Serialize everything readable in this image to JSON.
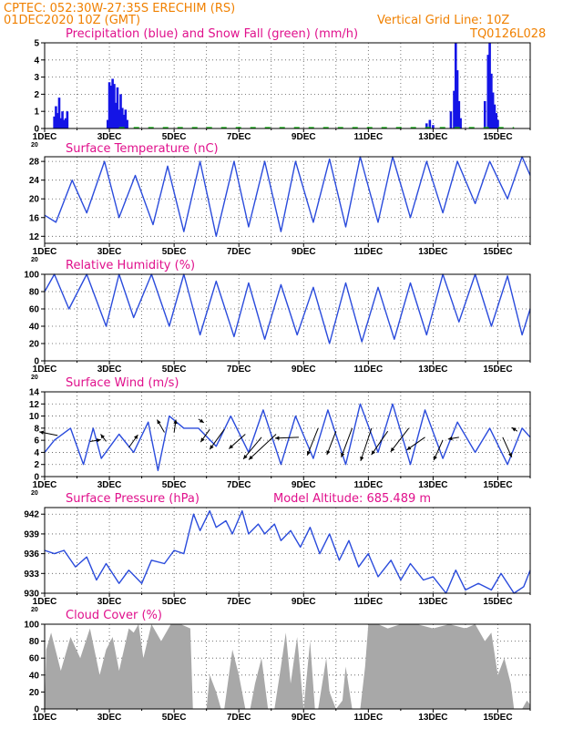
{
  "header": {
    "line1": "CPTEC:   052:30W-27:35S   ERECHIM (RS)",
    "line2": "01DEC2020  10Z (GMT)",
    "grid_note": "Vertical Grid Line: 10Z",
    "run_code": "TQ0126L028"
  },
  "x_axis": {
    "ticks": [
      "1DEC",
      "3DEC",
      "5DEC",
      "7DEC",
      "9DEC",
      "11DEC",
      "13DEC",
      "15DEC"
    ],
    "year_fragment": "20"
  },
  "colors": {
    "precip": "#1414e6",
    "snow": "#14b414",
    "line": "#2a4bdc",
    "wind_arrow": "#000000",
    "cloud": "#a8a8a8",
    "header": "#f08000",
    "title": "#e0108c"
  },
  "chart_data": [
    {
      "type": "bar",
      "title": "Precipitation (blue) and Snow Fall (green) (mm/h)",
      "ylim": [
        0,
        5
      ],
      "y_ticks": [
        "0",
        "1",
        "2",
        "3",
        "4",
        "5"
      ],
      "series": [
        {
          "name": "Precipitation",
          "day": [
            1.3,
            1.35,
            1.4,
            1.45,
            1.5,
            1.55,
            1.6,
            1.65,
            1.7,
            2.95,
            3.0,
            3.05,
            3.1,
            3.15,
            3.2,
            3.25,
            3.3,
            3.35,
            3.4,
            3.45,
            3.5,
            3.55,
            12.8,
            12.9,
            13.0,
            13.55,
            13.65,
            13.7,
            13.75,
            13.8,
            13.85,
            14.6,
            14.7,
            14.75,
            14.8,
            14.85,
            14.9,
            14.95,
            15.0
          ],
          "mm_h": [
            0.7,
            1.3,
            0.9,
            1.8,
            0.6,
            1.0,
            0.5,
            0.6,
            1.0,
            0.5,
            2.7,
            2.5,
            2.9,
            2.6,
            1.5,
            2.4,
            1.1,
            2.0,
            1.2,
            0.8,
            1.1,
            0.5,
            0.3,
            0.5,
            0.2,
            1.0,
            2.2,
            5.0,
            3.4,
            1.6,
            0.6,
            1.6,
            4.3,
            5.0,
            3.2,
            2.1,
            1.4,
            0.9,
            0.5
          ]
        }
      ]
    },
    {
      "type": "line",
      "title": "Surface Temperature (nC)",
      "ylim": [
        10.5,
        29
      ],
      "y_ticks": [
        "12",
        "16",
        "20",
        "24",
        "28"
      ],
      "series": [
        {
          "name": "Surface Temperature",
          "day": [
            1.0,
            1.35,
            1.85,
            2.3,
            2.85,
            3.3,
            3.8,
            4.35,
            4.8,
            5.3,
            5.8,
            6.3,
            6.85,
            7.3,
            7.8,
            8.3,
            8.75,
            9.3,
            9.8,
            10.3,
            10.75,
            11.3,
            11.75,
            12.3,
            12.8,
            13.3,
            13.75,
            14.3,
            14.75,
            15.3,
            15.75,
            16.0
          ],
          "celsius": [
            16.5,
            15.0,
            24.0,
            17.0,
            28.0,
            16.0,
            25.0,
            14.5,
            27.0,
            13.0,
            28.0,
            12.0,
            28.0,
            14.0,
            28.0,
            13.0,
            28.0,
            15.0,
            28.5,
            14.0,
            29.0,
            15.0,
            29.0,
            16.0,
            28.0,
            17.0,
            28.0,
            19.0,
            28.0,
            20.0,
            29.0,
            25.0
          ]
        }
      ]
    },
    {
      "type": "line",
      "title": "Relative Humidity (%)",
      "ylim": [
        0,
        100
      ],
      "y_ticks": [
        "0",
        "20",
        "40",
        "60",
        "80",
        "100"
      ],
      "series": [
        {
          "name": "Relative Humidity",
          "day": [
            1.0,
            1.3,
            1.75,
            2.3,
            2.9,
            3.3,
            3.75,
            4.3,
            4.85,
            5.3,
            5.8,
            6.3,
            6.85,
            7.3,
            7.8,
            8.3,
            8.8,
            9.3,
            9.8,
            10.3,
            10.8,
            11.3,
            11.8,
            12.3,
            12.8,
            13.3,
            13.8,
            14.3,
            14.8,
            15.3,
            15.75,
            16.0
          ],
          "percent": [
            80,
            100,
            60,
            100,
            40,
            100,
            50,
            100,
            40,
            100,
            30,
            92,
            28,
            90,
            25,
            88,
            30,
            85,
            20,
            90,
            22,
            85,
            25,
            90,
            30,
            100,
            45,
            100,
            40,
            98,
            30,
            60
          ]
        }
      ]
    },
    {
      "type": "line",
      "title": "Surface Wind (m/s)",
      "ylim": [
        0,
        14
      ],
      "y_ticks": [
        "0",
        "2",
        "4",
        "6",
        "8",
        "10",
        "12",
        "14"
      ],
      "series": [
        {
          "name": "Surface Wind",
          "day": [
            1.0,
            1.3,
            1.8,
            2.2,
            2.5,
            2.75,
            3.3,
            3.75,
            4.2,
            4.5,
            4.85,
            5.3,
            5.75,
            6.3,
            6.75,
            7.3,
            7.75,
            8.3,
            8.75,
            9.3,
            9.75,
            10.3,
            10.75,
            11.3,
            11.75,
            12.3,
            12.75,
            13.3,
            13.75,
            14.3,
            14.75,
            15.3,
            15.75,
            16.0
          ],
          "m_s": [
            4.0,
            6.0,
            8.0,
            2.0,
            8.0,
            3.0,
            7.0,
            4.0,
            9.0,
            1.0,
            10.0,
            8.0,
            8.0,
            5.0,
            10.0,
            4.0,
            11.0,
            2.0,
            10.0,
            3.0,
            11.0,
            2.0,
            12.0,
            4.0,
            12.0,
            2.0,
            11.0,
            3.0,
            9.0,
            4.0,
            8.0,
            2.0,
            8.0,
            6.5
          ]
        }
      ]
    },
    {
      "type": "line",
      "title": "Surface Pressure (hPa)",
      "annotation": "Model Altitude: 685.489 m",
      "ylim": [
        930,
        943
      ],
      "y_ticks": [
        "930",
        "933",
        "936",
        "939",
        "942"
      ],
      "series": [
        {
          "name": "Surface Pressure",
          "day": [
            1.0,
            1.3,
            1.6,
            1.95,
            2.3,
            2.6,
            2.9,
            3.3,
            3.6,
            4.0,
            4.3,
            4.7,
            5.0,
            5.3,
            5.6,
            5.8,
            6.1,
            6.3,
            6.6,
            6.8,
            7.1,
            7.3,
            7.6,
            7.8,
            8.1,
            8.3,
            8.6,
            8.9,
            9.2,
            9.5,
            9.8,
            10.1,
            10.4,
            10.7,
            11.0,
            11.3,
            11.7,
            12.0,
            12.3,
            12.7,
            13.0,
            13.4,
            13.7,
            14.0,
            14.4,
            14.8,
            15.1,
            15.5,
            15.8,
            16.0
          ],
          "hPa": [
            936.5,
            936.0,
            936.5,
            934.0,
            935.5,
            932.0,
            934.5,
            931.5,
            933.5,
            931.5,
            935.0,
            934.5,
            936.5,
            936.0,
            942.0,
            939.5,
            942.5,
            940.0,
            941.0,
            939.0,
            942.5,
            939.0,
            940.5,
            939.0,
            940.5,
            938.0,
            939.5,
            937.0,
            940.0,
            936.0,
            939.0,
            935.0,
            938.0,
            934.0,
            936.0,
            932.5,
            935.0,
            932.0,
            934.5,
            932.0,
            932.5,
            930.0,
            933.5,
            930.5,
            931.5,
            930.5,
            933.0,
            930.0,
            931.0,
            933.5
          ]
        }
      ]
    },
    {
      "type": "area",
      "title": "Cloud Cover (%)",
      "ylim": [
        0,
        100
      ],
      "y_ticks": [
        "0",
        "20",
        "40",
        "60",
        "80",
        "100"
      ],
      "series": [
        {
          "name": "Cloud Cover",
          "day": [
            1.0,
            1.05,
            1.2,
            1.5,
            1.8,
            2.1,
            2.4,
            2.7,
            2.9,
            3.1,
            3.3,
            3.6,
            3.75,
            3.9,
            4.05,
            4.3,
            4.6,
            4.9,
            5.2,
            5.5,
            5.58,
            5.62,
            6.0,
            6.1,
            6.3,
            6.45,
            6.55,
            6.8,
            7.0,
            7.2,
            7.35,
            7.5,
            7.7,
            7.9,
            8.1,
            8.3,
            8.45,
            8.6,
            8.8,
            9.0,
            9.2,
            9.35,
            9.45,
            9.7,
            9.8,
            10.0,
            10.2,
            10.3,
            10.5,
            10.75,
            10.9,
            11.0,
            11.3,
            11.6,
            12.0,
            12.5,
            13.0,
            13.5,
            14.0,
            14.3,
            14.6,
            14.8,
            15.0,
            15.2,
            15.4,
            15.5,
            15.6,
            15.75,
            15.9,
            16.0
          ],
          "percent": [
            0,
            70,
            90,
            45,
            85,
            60,
            95,
            40,
            70,
            85,
            45,
            95,
            90,
            100,
            60,
            100,
            80,
            100,
            100,
            95,
            0,
            0,
            0,
            40,
            20,
            0,
            0,
            70,
            40,
            0,
            0,
            30,
            60,
            0,
            0,
            50,
            90,
            30,
            85,
            0,
            80,
            0,
            0,
            60,
            20,
            0,
            10,
            50,
            0,
            0,
            50,
            100,
            100,
            95,
            100,
            100,
            95,
            100,
            95,
            100,
            80,
            90,
            40,
            60,
            30,
            0,
            0,
            0,
            10,
            5
          ]
        }
      ]
    }
  ],
  "wind_arrows": [
    {
      "day": 1.4,
      "m_s": 6.8,
      "dx": -20,
      "dy": -4
    },
    {
      "day": 2.4,
      "m_s": 5.8,
      "dx": 12,
      "dy": -2
    },
    {
      "day": 2.9,
      "m_s": 5.8,
      "dx": -6,
      "dy": -8
    },
    {
      "day": 3.6,
      "m_s": 4.8,
      "dx": 10,
      "dy": -14
    },
    {
      "day": 4.7,
      "m_s": 7.3,
      "dx": -8,
      "dy": -14
    },
    {
      "day": 5.0,
      "m_s": 7.3,
      "dx": 2,
      "dy": -14
    },
    {
      "day": 5.75,
      "m_s": 9.5,
      "dx": 6,
      "dy": 4
    },
    {
      "day": 6.1,
      "m_s": 7.8,
      "dx": -10,
      "dy": 14
    },
    {
      "day": 6.55,
      "m_s": 7.8,
      "dx": -16,
      "dy": 22
    },
    {
      "day": 7.2,
      "m_s": 7.0,
      "dx": -18,
      "dy": 16
    },
    {
      "day": 7.7,
      "m_s": 6.5,
      "dx": -20,
      "dy": 24
    },
    {
      "day": 8.15,
      "m_s": 7.0,
      "dx": -30,
      "dy": 28
    },
    {
      "day": 8.85,
      "m_s": 6.5,
      "dx": -26,
      "dy": 1
    },
    {
      "day": 9.45,
      "m_s": 8.0,
      "dx": -12,
      "dy": 30
    },
    {
      "day": 10.0,
      "m_s": 7.5,
      "dx": -10,
      "dy": 26
    },
    {
      "day": 10.5,
      "m_s": 8.0,
      "dx": -12,
      "dy": 32
    },
    {
      "day": 11.1,
      "m_s": 8.0,
      "dx": -12,
      "dy": 36
    },
    {
      "day": 11.6,
      "m_s": 7.5,
      "dx": -18,
      "dy": 26
    },
    {
      "day": 12.25,
      "m_s": 8.0,
      "dx": -20,
      "dy": 26
    },
    {
      "day": 12.75,
      "m_s": 6.5,
      "dx": -20,
      "dy": 14
    },
    {
      "day": 13.3,
      "m_s": 6.0,
      "dx": -10,
      "dy": 22
    },
    {
      "day": 13.8,
      "m_s": 6.5,
      "dx": -12,
      "dy": 2
    },
    {
      "day": 15.15,
      "m_s": 6.5,
      "dx": 10,
      "dy": 22
    },
    {
      "day": 15.6,
      "m_s": 7.5,
      "dx": -6,
      "dy": -4
    }
  ]
}
